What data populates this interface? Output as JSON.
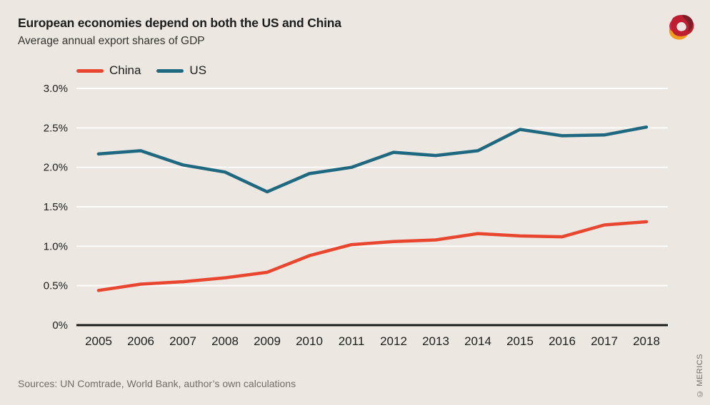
{
  "header": {
    "title": "European economies depend on both the US and China",
    "subtitle": "Average annual export shares of GDP"
  },
  "legend": {
    "items": [
      {
        "label": "China",
        "color": "#E8462F"
      },
      {
        "label": "US",
        "color": "#1E6880"
      }
    ]
  },
  "footer": {
    "sources": "Sources: UN Comtrade, World Bank, author’s own calculations",
    "credit": "© MERICS"
  },
  "logo": {
    "name": "merics-logo",
    "colors": {
      "crimson": "#BE2032",
      "maroon": "#7E1F28",
      "orange": "#F29C1F",
      "magenta": "#DC1F48"
    }
  },
  "colors": {
    "background": "#ECE7E1",
    "gridline": "#FDFDFB",
    "axis": "#1A1A18",
    "label": "#1D1D1B",
    "muted": "#716D68"
  },
  "chart_data": {
    "type": "line",
    "title": "European economies depend on both the US and China",
    "subtitle": "Average annual export shares of GDP",
    "x": [
      2005,
      2006,
      2007,
      2008,
      2009,
      2010,
      2011,
      2012,
      2013,
      2014,
      2015,
      2016,
      2017,
      2018
    ],
    "series": [
      {
        "name": "China",
        "color": "#E8462F",
        "values": [
          0.44,
          0.52,
          0.55,
          0.6,
          0.67,
          0.88,
          1.02,
          1.06,
          1.08,
          1.16,
          1.13,
          1.12,
          1.27,
          1.31
        ]
      },
      {
        "name": "US",
        "color": "#1E6880",
        "values": [
          2.17,
          2.21,
          2.03,
          1.94,
          1.69,
          1.92,
          2.0,
          2.19,
          2.15,
          2.21,
          2.48,
          2.4,
          2.41,
          2.51
        ]
      }
    ],
    "xlabel": "",
    "ylabel": "",
    "ylim": [
      0,
      3.0
    ],
    "yticks": [
      {
        "value": 0,
        "label": "0%"
      },
      {
        "value": 0.5,
        "label": "0.5%"
      },
      {
        "value": 1.0,
        "label": "1.0%"
      },
      {
        "value": 1.5,
        "label": "1.5%"
      },
      {
        "value": 2.0,
        "label": "2.0%"
      },
      {
        "value": 2.5,
        "label": "2.5%"
      },
      {
        "value": 3.0,
        "label": "3.0%"
      }
    ],
    "grid": true,
    "legend_position": "top-left"
  }
}
